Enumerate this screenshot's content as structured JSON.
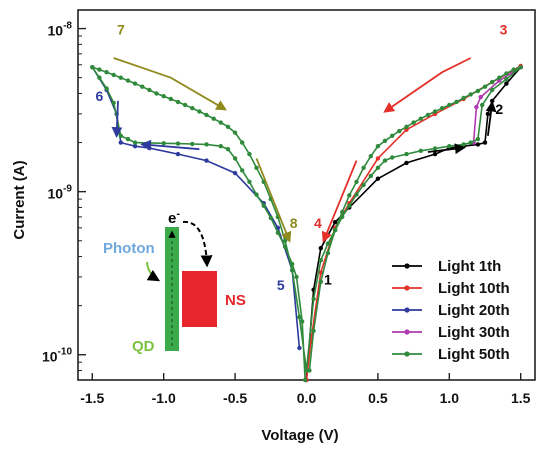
{
  "chart_data": {
    "type": "line",
    "xlabel": "Voltage (V)",
    "ylabel": "Current (A)",
    "x_ticks": [
      "-1.5",
      "-1.0",
      "-0.5",
      "0.0",
      "0.5",
      "1.0",
      "1.5"
    ],
    "y_ticks": [
      {
        "base": "10",
        "exp": "-10"
      },
      {
        "base": "10",
        "exp": "-9"
      },
      {
        "base": "10",
        "exp": "-8"
      }
    ],
    "xlim": [
      -1.6,
      1.6
    ],
    "ylim": [
      7e-11,
      1.3e-08
    ],
    "yscale": "log",
    "grid": false,
    "legend": "bottom-right",
    "series": [
      {
        "name": "Light 1th",
        "color": "#000000",
        "xy": [
          [
            0.0,
            7e-11
          ],
          [
            0.05,
            2.5e-10
          ],
          [
            0.1,
            4.5e-10
          ],
          [
            0.2,
            6.5e-10
          ],
          [
            0.3,
            8e-10
          ],
          [
            0.5,
            1.2e-09
          ],
          [
            0.7,
            1.5e-09
          ],
          [
            0.9,
            1.7e-09
          ],
          [
            1.0,
            1.85e-09
          ],
          [
            1.1,
            1.9e-09
          ],
          [
            1.2,
            1.95e-09
          ],
          [
            1.25,
            2e-09
          ],
          [
            1.27,
            3e-09
          ],
          [
            1.3,
            3.6e-09
          ],
          [
            1.4,
            4.6e-09
          ],
          [
            1.5,
            5.8e-09
          ]
        ]
      },
      {
        "name": "Light 10th",
        "color": "#e5302a",
        "xy": [
          [
            1.5,
            5.9e-09
          ],
          [
            1.3,
            4.7e-09
          ],
          [
            1.1,
            3.7e-09
          ],
          [
            0.9,
            3e-09
          ],
          [
            0.7,
            2.4e-09
          ],
          [
            0.5,
            1.6e-09
          ],
          [
            0.3,
            8.5e-10
          ],
          [
            0.2,
            6e-10
          ],
          [
            0.1,
            3.2e-10
          ],
          [
            0.03,
            1.2e-10
          ],
          [
            0.0,
            7e-11
          ]
        ]
      },
      {
        "name": "Light 20th",
        "color": "#2f3b9c",
        "xy": [
          [
            -0.05,
            1.1e-10
          ],
          [
            -0.1,
            3.3e-10
          ],
          [
            -0.2,
            6e-10
          ],
          [
            -0.3,
            8.5e-10
          ],
          [
            -0.5,
            1.3e-09
          ],
          [
            -0.7,
            1.55e-09
          ],
          [
            -0.9,
            1.7e-09
          ],
          [
            -1.1,
            1.85e-09
          ],
          [
            -1.2,
            1.9e-09
          ],
          [
            -1.3,
            2e-09
          ],
          [
            -1.33,
            3e-09
          ],
          [
            -1.4,
            4.2e-09
          ],
          [
            -1.5,
            5.8e-09
          ]
        ]
      },
      {
        "name": "Light 30th",
        "color": "#b03ab0",
        "xy": [
          [
            1.17,
            2e-09
          ],
          [
            1.19,
            3.3e-09
          ],
          [
            1.22,
            3.8e-09
          ],
          [
            1.35,
            4.8e-09
          ],
          [
            1.5,
            5.8e-09
          ]
        ]
      },
      {
        "name": "Light 50th",
        "color": "#2f8a3c",
        "xy": [
          [
            -0.01,
            7e-11
          ],
          [
            -0.03,
            1.6e-10
          ],
          [
            -0.07,
            3e-10
          ],
          [
            -0.1,
            3.6e-10
          ],
          [
            -0.15,
            4.6e-10
          ],
          [
            -0.2,
            5.6e-10
          ],
          [
            -0.25,
            6.9e-10
          ],
          [
            -0.3,
            8.2e-10
          ],
          [
            -0.35,
            9.6e-10
          ],
          [
            -0.4,
            1.15e-09
          ],
          [
            -0.45,
            1.35e-09
          ],
          [
            -0.5,
            1.6e-09
          ],
          [
            -0.55,
            1.82e-09
          ],
          [
            -0.6,
            1.9e-09
          ],
          [
            -0.7,
            1.95e-09
          ],
          [
            -0.8,
            1.96e-09
          ],
          [
            -0.9,
            1.97e-09
          ],
          [
            -1.0,
            1.98e-09
          ],
          [
            -1.1,
            1.99e-09
          ],
          [
            -1.2,
            2e-09
          ],
          [
            -1.25,
            2.1e-09
          ],
          [
            -1.3,
            2.2e-09
          ],
          [
            -1.35,
            3.5e-09
          ],
          [
            -1.4,
            4.3e-09
          ],
          [
            -1.45,
            5e-09
          ],
          [
            -1.5,
            5.8e-09
          ],
          [
            -1.45,
            5.6e-09
          ],
          [
            -1.4,
            5.4e-09
          ],
          [
            -1.35,
            5.2e-09
          ],
          [
            -1.3,
            5e-09
          ],
          [
            -1.25,
            4.8e-09
          ],
          [
            -1.2,
            4.6e-09
          ],
          [
            -1.15,
            4.4e-09
          ],
          [
            -1.1,
            4.2e-09
          ],
          [
            -1.05,
            4e-09
          ],
          [
            -1.0,
            3.85e-09
          ],
          [
            -0.95,
            3.7e-09
          ],
          [
            -0.9,
            3.55e-09
          ],
          [
            -0.85,
            3.4e-09
          ],
          [
            -0.8,
            3.25e-09
          ],
          [
            -0.75,
            3.1e-09
          ],
          [
            -0.7,
            2.95e-09
          ],
          [
            -0.65,
            2.8e-09
          ],
          [
            -0.6,
            2.65e-09
          ],
          [
            -0.55,
            2.5e-09
          ],
          [
            -0.5,
            2.3e-09
          ],
          [
            -0.45,
            2e-09
          ],
          [
            -0.4,
            1.7e-09
          ],
          [
            -0.35,
            1.4e-09
          ],
          [
            -0.3,
            1.15e-09
          ],
          [
            -0.25,
            9e-10
          ],
          [
            -0.2,
            7e-10
          ],
          [
            -0.15,
            5e-10
          ],
          [
            -0.1,
            3.3e-10
          ],
          [
            -0.05,
            1.7e-10
          ],
          [
            0.0,
            8e-11
          ],
          [
            0.05,
            2.2e-10
          ],
          [
            0.1,
            3.8e-10
          ],
          [
            0.15,
            4.8e-10
          ],
          [
            0.2,
            5.8e-10
          ],
          [
            0.25,
            7e-10
          ],
          [
            0.3,
            8.2e-10
          ],
          [
            0.35,
            9.6e-10
          ],
          [
            0.4,
            1.1e-09
          ],
          [
            0.45,
            1.25e-09
          ],
          [
            0.5,
            1.4e-09
          ],
          [
            0.55,
            1.55e-09
          ],
          [
            0.6,
            1.62e-09
          ],
          [
            0.7,
            1.7e-09
          ],
          [
            0.8,
            1.78e-09
          ],
          [
            0.9,
            1.84e-09
          ],
          [
            1.0,
            1.9e-09
          ],
          [
            1.1,
            1.95e-09
          ],
          [
            1.15,
            2e-09
          ],
          [
            1.2,
            2.1e-09
          ],
          [
            1.23,
            3.4e-09
          ],
          [
            1.3,
            4.2e-09
          ],
          [
            1.4,
            4.9e-09
          ],
          [
            1.5,
            5.8e-09
          ],
          [
            1.45,
            5.6e-09
          ],
          [
            1.4,
            5.3e-09
          ],
          [
            1.35,
            5e-09
          ],
          [
            1.3,
            4.7e-09
          ],
          [
            1.25,
            4.4e-09
          ],
          [
            1.2,
            4.15e-09
          ],
          [
            1.15,
            3.95e-09
          ],
          [
            1.1,
            3.75e-09
          ],
          [
            1.05,
            3.55e-09
          ],
          [
            1.0,
            3.4e-09
          ],
          [
            0.95,
            3.25e-09
          ],
          [
            0.9,
            3.1e-09
          ],
          [
            0.85,
            2.95e-09
          ],
          [
            0.8,
            2.8e-09
          ],
          [
            0.75,
            2.65e-09
          ],
          [
            0.7,
            2.5e-09
          ],
          [
            0.65,
            2.35e-09
          ],
          [
            0.6,
            2.2e-09
          ],
          [
            0.55,
            2.05e-09
          ],
          [
            0.5,
            1.9e-09
          ],
          [
            0.45,
            1.65e-09
          ],
          [
            0.4,
            1.4e-09
          ],
          [
            0.35,
            1.15e-09
          ],
          [
            0.3,
            9.5e-10
          ],
          [
            0.25,
            7.5e-10
          ],
          [
            0.2,
            5.8e-10
          ],
          [
            0.15,
            4.2e-10
          ],
          [
            0.1,
            2.8e-10
          ],
          [
            0.05,
            1.4e-10
          ],
          [
            0.02,
            8e-11
          ]
        ]
      }
    ],
    "annotations": [
      {
        "text": "1",
        "x": 0.15,
        "y": 2.7e-10,
        "color": "#000000"
      },
      {
        "text": "2",
        "x": 1.35,
        "y": 3e-09,
        "color": "#000000"
      },
      {
        "text": "3",
        "x": 1.38,
        "y": 9.2e-09,
        "color": "#e5302a"
      },
      {
        "text": "4",
        "x": 0.08,
        "y": 6e-10,
        "color": "#e5302a"
      },
      {
        "text": "5",
        "x": -0.18,
        "y": 2.5e-10,
        "color": "#2f3b9c"
      },
      {
        "text": "6",
        "x": -1.45,
        "y": 3.6e-09,
        "color": "#2f3b9c"
      },
      {
        "text": "7",
        "x": -1.3,
        "y": 9.2e-09,
        "color": "#8f8a1e"
      },
      {
        "text": "8",
        "x": -0.09,
        "y": 6e-10,
        "color": "#8f8a1e"
      }
    ],
    "arrows": [
      {
        "color": "#000000",
        "path": [
          [
            0.85,
            1.75e-09
          ],
          [
            1.1,
            1.86e-09
          ]
        ]
      },
      {
        "color": "#000000",
        "path": [
          [
            1.27,
            2.2e-09
          ],
          [
            1.3,
            3.5e-09
          ]
        ]
      },
      {
        "color": "#e5302a",
        "path": [
          [
            1.15,
            6.6e-09
          ],
          [
            0.95,
            5.4e-09
          ],
          [
            0.55,
            3.1e-09
          ]
        ]
      },
      {
        "color": "#e5302a",
        "path": [
          [
            0.35,
            1.55e-09
          ],
          [
            0.12,
            5e-10
          ]
        ]
      },
      {
        "color": "#2f3b9c",
        "path": [
          [
            -0.75,
            1.82e-09
          ],
          [
            -1.15,
            1.95e-09
          ]
        ]
      },
      {
        "color": "#2f3b9c",
        "path": [
          [
            -1.32,
            3.6e-09
          ],
          [
            -1.33,
            2.2e-09
          ]
        ]
      },
      {
        "color": "#8f8a1e",
        "path": [
          [
            -1.35,
            6.6e-09
          ],
          [
            -0.95,
            5e-09
          ],
          [
            -0.57,
            3.2e-09
          ]
        ]
      },
      {
        "color": "#8f8a1e",
        "path": [
          [
            -0.35,
            1.6e-09
          ],
          [
            -0.12,
            5e-10
          ]
        ]
      }
    ]
  },
  "inset": {
    "electron_label": "e",
    "electron_sup": "-",
    "photon_label": "Photon",
    "qd_label": "QD",
    "ns_label": "NS",
    "qd_color": "#3aaa4a",
    "ns_color": "#e8262d",
    "photon_color": "#6fa8dc",
    "qd_text_color": "#7cc242",
    "ns_text_color": "#e8262d"
  }
}
